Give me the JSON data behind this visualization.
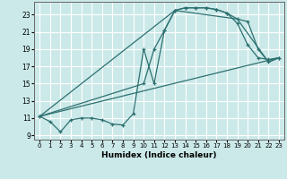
{
  "xlabel": "Humidex (Indice chaleur)",
  "bg_color": "#cce9e9",
  "grid_color": "#ffffff",
  "line_color": "#2d7070",
  "xlim": [
    -0.5,
    23.5
  ],
  "ylim": [
    8.5,
    24.5
  ],
  "yticks": [
    9,
    11,
    13,
    15,
    17,
    19,
    21,
    23
  ],
  "xticks": [
    0,
    1,
    2,
    3,
    4,
    5,
    6,
    7,
    8,
    9,
    10,
    11,
    12,
    13,
    14,
    15,
    16,
    17,
    18,
    19,
    20,
    21,
    22,
    23
  ],
  "line1_x": [
    0,
    1,
    2,
    3,
    4,
    5,
    6,
    7,
    8,
    9,
    10,
    11,
    12,
    13,
    14,
    15,
    16,
    17,
    18,
    19,
    20,
    21,
    22,
    23
  ],
  "line1_y": [
    11.2,
    10.6,
    9.4,
    10.8,
    11.0,
    11.0,
    10.8,
    10.3,
    10.2,
    11.5,
    19.0,
    15.0,
    21.2,
    23.5,
    23.8,
    23.8,
    23.8,
    23.6,
    23.2,
    22.0,
    19.5,
    18.0,
    17.8,
    18.0
  ],
  "line2_x": [
    0,
    10,
    11,
    12,
    13,
    14,
    15,
    16,
    17,
    18,
    19,
    20,
    21,
    22,
    23
  ],
  "line2_y": [
    11.2,
    15.0,
    19.0,
    21.2,
    23.5,
    23.8,
    23.8,
    23.8,
    23.6,
    23.2,
    22.5,
    22.2,
    19.0,
    17.5,
    18.0
  ],
  "line3_x": [
    0,
    23
  ],
  "line3_y": [
    11.2,
    18.0
  ],
  "line4_x": [
    0,
    13,
    19,
    22,
    23
  ],
  "line4_y": [
    11.2,
    23.5,
    22.5,
    17.5,
    18.0
  ]
}
